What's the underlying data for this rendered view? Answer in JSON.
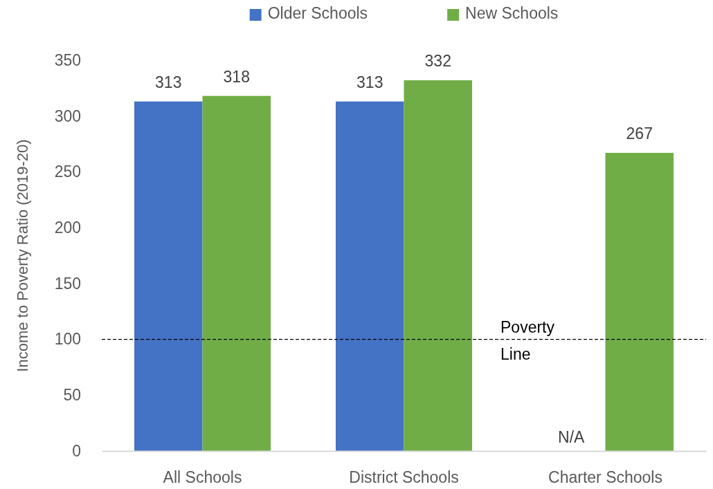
{
  "chart_data": {
    "type": "bar",
    "ylabel": "Income to Poverty Ratio (2019-20)",
    "categories": [
      "All Schools",
      "District Schools",
      "Charter Schools"
    ],
    "series": [
      {
        "name": "Older Schools",
        "color": "#4472c4",
        "values": [
          313,
          313,
          null
        ],
        "value_labels": [
          "313",
          "313",
          "N/A"
        ]
      },
      {
        "name": "New Schools",
        "color": "#70ad47",
        "values": [
          318,
          332,
          267
        ],
        "value_labels": [
          "318",
          "332",
          "267"
        ]
      }
    ],
    "ylim": [
      0,
      350
    ],
    "yticks": [
      0,
      50,
      100,
      150,
      200,
      250,
      300,
      350
    ],
    "legend": "top",
    "ref_lines": [
      {
        "axis": "y",
        "value": 100,
        "label": "Poverty Line",
        "color": "#000000",
        "line_style": "dashed"
      }
    ]
  }
}
